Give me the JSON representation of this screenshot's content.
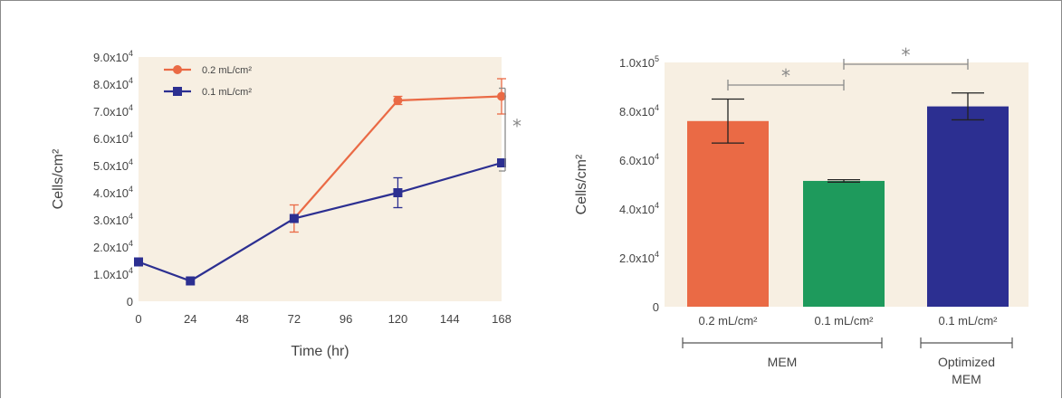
{
  "colors": {
    "plot_bg": "#f7efe2",
    "orange": "#ea6a45",
    "navy": "#2c2f91",
    "green": "#1e9a5c",
    "bracket": "#8a8a8a"
  },
  "chart_data": [
    {
      "type": "line",
      "xlabel": "Time (hr)",
      "ylabel": "Cells/cm²",
      "xlim": [
        0,
        168
      ],
      "ylim": [
        0,
        90000
      ],
      "xticks": [
        0,
        24,
        48,
        72,
        96,
        120,
        144,
        168
      ],
      "yticks": [
        {
          "value": 0,
          "mant": "0",
          "exp": ""
        },
        {
          "value": 10000,
          "mant": "1.0x10",
          "exp": "4"
        },
        {
          "value": 20000,
          "mant": "2.0x10",
          "exp": "4"
        },
        {
          "value": 30000,
          "mant": "3.0x10",
          "exp": "4"
        },
        {
          "value": 40000,
          "mant": "4.0x10",
          "exp": "4"
        },
        {
          "value": 50000,
          "mant": "5.0x10",
          "exp": "4"
        },
        {
          "value": 60000,
          "mant": "6.0x10",
          "exp": "4"
        },
        {
          "value": 70000,
          "mant": "7.0x10",
          "exp": "4"
        },
        {
          "value": 80000,
          "mant": "8.0x10",
          "exp": "4"
        },
        {
          "value": 90000,
          "mant": "9.0x10",
          "exp": "4"
        }
      ],
      "legend_position": "top-left",
      "series": [
        {
          "name": "0.2 mL/cm²",
          "marker": "circle",
          "color": "#ea6a45",
          "points": [
            {
              "x": 72,
              "y": 30500,
              "err": 5000
            },
            {
              "x": 120,
              "y": 74000,
              "err": 1500
            },
            {
              "x": 168,
              "y": 75500,
              "err": 6500
            }
          ]
        },
        {
          "name": "0.1 mL/cm²",
          "marker": "square",
          "color": "#2c2f91",
          "points": [
            {
              "x": 0,
              "y": 14500,
              "err": 0
            },
            {
              "x": 24,
              "y": 7500,
              "err": 0
            },
            {
              "x": 72,
              "y": 30500,
              "err": 0
            },
            {
              "x": 120,
              "y": 40000,
              "err": 5500
            },
            {
              "x": 168,
              "y": 51000,
              "err": 0
            }
          ]
        }
      ],
      "significance": [
        {
          "label": "*",
          "from_y": 48000,
          "to_y": 78500,
          "at_x": 168
        }
      ]
    },
    {
      "type": "bar",
      "ylabel": "Cells/cm²",
      "ylim": [
        0,
        100000
      ],
      "yticks": [
        {
          "value": 0,
          "mant": "0",
          "exp": ""
        },
        {
          "value": 20000,
          "mant": "2.0x10",
          "exp": "4"
        },
        {
          "value": 40000,
          "mant": "4.0x10",
          "exp": "4"
        },
        {
          "value": 60000,
          "mant": "6.0x10",
          "exp": "4"
        },
        {
          "value": 80000,
          "mant": "8.0x10",
          "exp": "4"
        },
        {
          "value": 100000,
          "mant": "1.0x10",
          "exp": "5"
        }
      ],
      "categories": [
        "0.2 mL/cm²",
        "0.1 mL/cm²",
        "0.1 mL/cm²"
      ],
      "values": [
        76000,
        51500,
        82000
      ],
      "errors": [
        9000,
        500,
        5500
      ],
      "bar_colors": [
        "#ea6a45",
        "#1e9a5c",
        "#2c2f91"
      ],
      "groups": [
        {
          "label": "MEM",
          "from": 0,
          "to": 1
        },
        {
          "label": "Optimized MEM",
          "from": 2,
          "to": 2
        }
      ],
      "significance": [
        {
          "label": "*",
          "from": 0,
          "to": 1
        },
        {
          "label": "*",
          "from": 1,
          "to": 2
        }
      ]
    }
  ]
}
